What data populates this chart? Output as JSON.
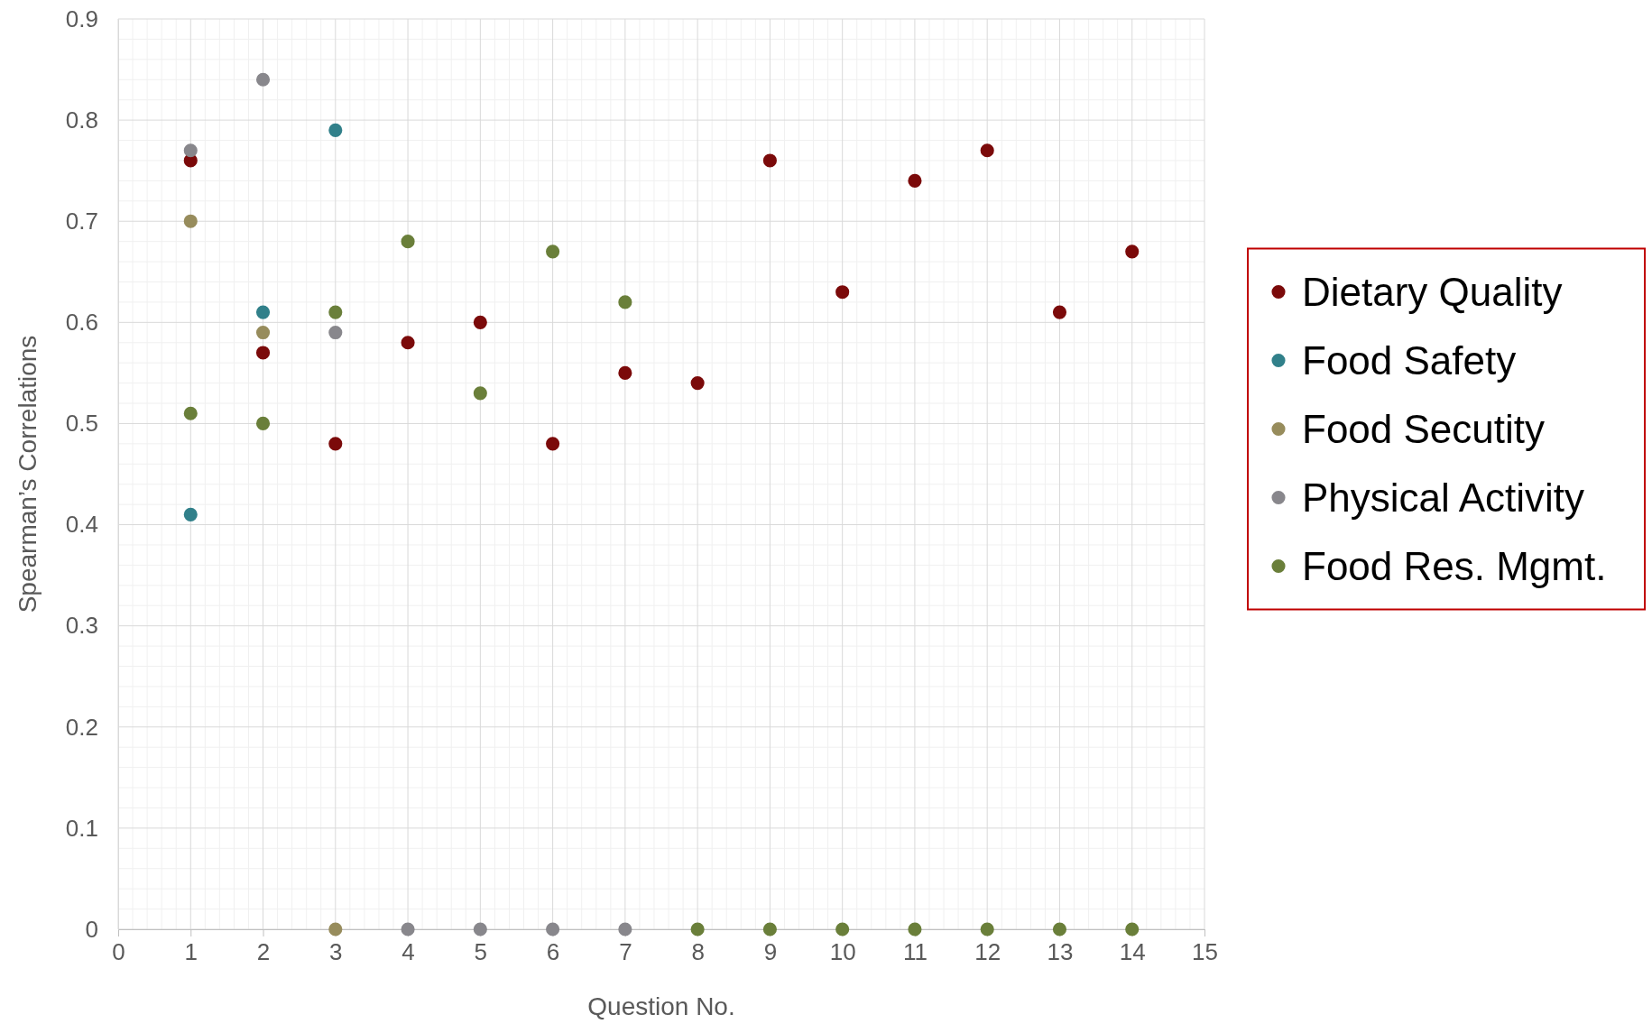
{
  "chart_data": {
    "type": "scatter",
    "xlabel": "Question No.",
    "ylabel": "Spearman’s Correlations",
    "x": [
      1,
      2,
      3,
      4,
      5,
      6,
      7,
      8,
      9,
      10,
      11,
      12,
      13,
      14
    ],
    "series": [
      {
        "name": "Dietary Quality",
        "color": "#7b0a0a",
        "values": [
          0.76,
          0.57,
          0.48,
          0.58,
          0.6,
          0.48,
          0.55,
          0.54,
          0.76,
          0.63,
          0.74,
          0.77,
          0.61,
          0.67
        ]
      },
      {
        "name": "Food Safety",
        "color": "#31808a",
        "values": [
          0.41,
          0.61,
          0.79,
          null,
          null,
          null,
          null,
          null,
          null,
          null,
          null,
          null,
          null,
          null
        ]
      },
      {
        "name": "Food Secutity",
        "color": "#978c5c",
        "values": [
          0.7,
          0.59,
          0,
          null,
          null,
          null,
          null,
          null,
          null,
          null,
          null,
          null,
          null,
          null
        ]
      },
      {
        "name": "Physical Activity",
        "color": "#88878c",
        "values": [
          0.77,
          0.84,
          0.59,
          0,
          0,
          0,
          0,
          null,
          null,
          null,
          null,
          null,
          null,
          null
        ]
      },
      {
        "name": "Food Res. Mgmt.",
        "color": "#6a7f3a",
        "values": [
          0.51,
          0.5,
          0.61,
          0.68,
          0.53,
          0.67,
          0.62,
          0,
          0,
          0,
          0,
          0,
          0,
          0
        ]
      }
    ],
    "xlim": [
      0,
      15
    ],
    "xticks": [
      0,
      1,
      2,
      3,
      4,
      5,
      6,
      7,
      8,
      9,
      10,
      11,
      12,
      13,
      14,
      15
    ],
    "ylim": [
      0,
      0.9
    ],
    "yticks": [
      {
        "value": 0,
        "label": "0"
      },
      0.1,
      0.2,
      0.3,
      0.4,
      0.5,
      0.6,
      0.7,
      0.8,
      0.9
    ],
    "grid": true,
    "legend": "right",
    "marker": "circle"
  }
}
